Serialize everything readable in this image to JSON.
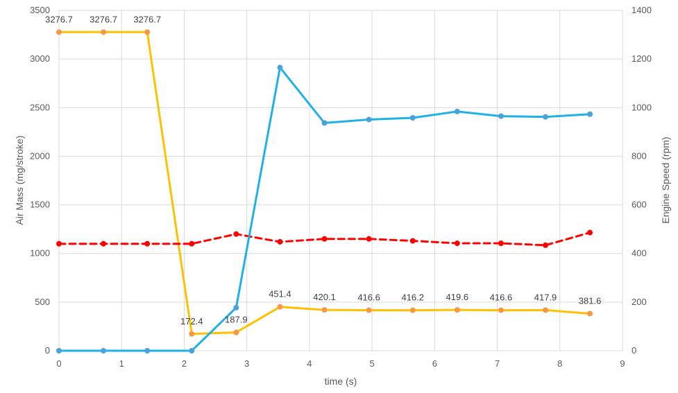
{
  "chart_data": {
    "type": "line",
    "xlabel": "time (s)",
    "ylabel_left": "Air Mass (mg/stroke)",
    "ylabel_right": "Engine Speed (rpm)",
    "xlim": [
      0,
      9
    ],
    "xticks": [
      0,
      1,
      2,
      3,
      4,
      5,
      6,
      7,
      8,
      9
    ],
    "ylim_left": [
      0,
      3500
    ],
    "yticks_left": [
      0,
      500,
      1000,
      1500,
      2000,
      2500,
      3000,
      3500
    ],
    "ylim_right": [
      0,
      1400
    ],
    "yticks_right": [
      0,
      200,
      400,
      600,
      800,
      1000,
      1200,
      1400
    ],
    "grid": true,
    "series": [
      {
        "axis": "left",
        "color": "#ffc000",
        "marker_color": "#f79646",
        "dash": false,
        "show_labels": true,
        "points": [
          [
            0,
            3276.7
          ],
          [
            0.71,
            3276.7
          ],
          [
            1.41,
            3276.7
          ],
          [
            2.12,
            172.4
          ],
          [
            2.83,
            187.9
          ],
          [
            3.53,
            451.4
          ],
          [
            4.24,
            420.1
          ],
          [
            4.95,
            416.6
          ],
          [
            5.65,
            416.2
          ],
          [
            6.36,
            419.6
          ],
          [
            7.06,
            416.6
          ],
          [
            7.77,
            417.9
          ],
          [
            8.48,
            381.6
          ]
        ]
      },
      {
        "axis": "left",
        "color": "#ff0000",
        "marker_color": "#ff0000",
        "dash": true,
        "show_labels": false,
        "points": [
          [
            0,
            1100
          ],
          [
            0.71,
            1100
          ],
          [
            1.41,
            1100
          ],
          [
            2.12,
            1100
          ],
          [
            2.83,
            1200
          ],
          [
            3.53,
            1120
          ],
          [
            4.24,
            1150
          ],
          [
            4.95,
            1150
          ],
          [
            5.65,
            1130
          ],
          [
            6.36,
            1105
          ],
          [
            7.06,
            1105
          ],
          [
            7.77,
            1085
          ],
          [
            8.48,
            1215
          ]
        ]
      },
      {
        "axis": "right",
        "color": "#1fb0e6",
        "marker_color": "#4aa3d8",
        "dash": false,
        "show_labels": false,
        "points": [
          [
            0,
            0
          ],
          [
            0.71,
            0
          ],
          [
            1.41,
            0
          ],
          [
            2.12,
            0
          ],
          [
            2.83,
            177
          ],
          [
            3.53,
            1165
          ],
          [
            4.24,
            937
          ],
          [
            4.95,
            951
          ],
          [
            5.65,
            958
          ],
          [
            6.36,
            984
          ],
          [
            7.06,
            965
          ],
          [
            7.77,
            962
          ],
          [
            8.48,
            973
          ]
        ]
      }
    ]
  }
}
